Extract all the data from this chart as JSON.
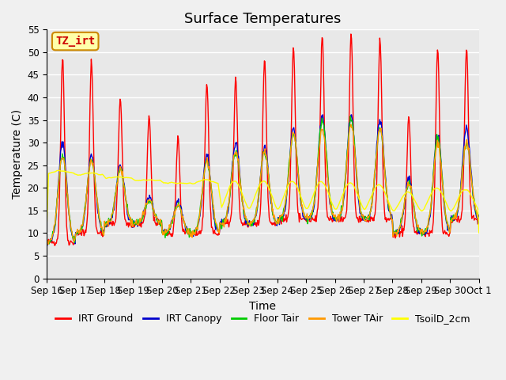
{
  "title": "Surface Temperatures",
  "xlabel": "Time",
  "ylabel": "Temperature (C)",
  "ylim": [
    0,
    55
  ],
  "yticks": [
    0,
    5,
    10,
    15,
    20,
    25,
    30,
    35,
    40,
    45,
    50,
    55
  ],
  "xtick_labels": [
    "Sep 16",
    "Sep 17",
    "Sep 18",
    "Sep 19",
    "Sep 20",
    "Sep 21",
    "Sep 22",
    "Sep 23",
    "Sep 24",
    "Sep 25",
    "Sep 26",
    "Sep 27",
    "Sep 28",
    "Sep 29",
    "Sep 30",
    "Oct 1"
  ],
  "series_colors": [
    "#ff0000",
    "#0000cc",
    "#00cc00",
    "#ff9900",
    "#ffff00"
  ],
  "series_names": [
    "IRT Ground",
    "IRT Canopy",
    "Floor Tair",
    "Tower TAir",
    "TsoilD_2cm"
  ],
  "annotation_text": "TZ_irt",
  "annotation_box_color": "#ffffaa",
  "annotation_box_edgecolor": "#cc8800",
  "annotation_text_color": "#cc0000",
  "background_color": "#e8e8e8",
  "plot_bg_color": "#e8e8e8",
  "grid_color": "#ffffff",
  "title_fontsize": 13,
  "label_fontsize": 10,
  "tick_fontsize": 8.5,
  "legend_fontsize": 9,
  "n_days": 15,
  "points_per_day": 48,
  "day_peaks_ground": [
    49,
    48,
    40,
    36,
    31,
    43,
    44,
    48,
    51,
    54,
    54,
    53,
    36,
    51,
    51
  ],
  "day_peaks_canopy": [
    30,
    27,
    25,
    18,
    17,
    27,
    30,
    29,
    33,
    36,
    36,
    35,
    22,
    32,
    33
  ],
  "day_peaks_floor": [
    27,
    26,
    24,
    17,
    16,
    26,
    28,
    28,
    32,
    35,
    35,
    33,
    21,
    31,
    30
  ],
  "day_peaks_tower": [
    27,
    26,
    24,
    17,
    16,
    26,
    28,
    28,
    32,
    33,
    34,
    33,
    21,
    30,
    30
  ],
  "day_mins": [
    8,
    10,
    12,
    12,
    10,
    10,
    12,
    12,
    13,
    13,
    13,
    13,
    10,
    10,
    13
  ]
}
